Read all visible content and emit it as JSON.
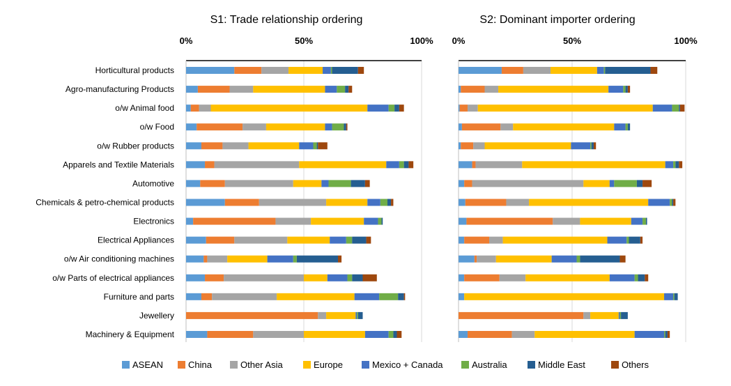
{
  "chart_data": {
    "type": "bar",
    "stacked": true,
    "orientation": "horizontal",
    "xlim": [
      0,
      100
    ],
    "tick_labels": [
      "0%",
      "50%",
      "100%"
    ],
    "categories": [
      "Horticultural products",
      "Agro-manufacturing Products",
      "o/w Animal food",
      "o/w Food",
      "o/w Rubber products",
      "Apparels and Textile Materials",
      "Automotive",
      "Chemicals & petro-chemical products",
      "Electronics",
      "Electrical Appliances",
      "o/w Air conditioning machines",
      "o/w Parts of electrical appliances",
      "Furniture and parts",
      "Jewellery",
      "Machinery & Equipment"
    ],
    "series_names": [
      "ASEAN",
      "China",
      "Other Asia",
      "Europe",
      "Mexico + Canada",
      "Australia",
      "Middle East",
      "Others"
    ],
    "colors": [
      "#5B9BD5",
      "#ED7D31",
      "#A5A5A5",
      "#FFC000",
      "#4472C4",
      "#70AD47",
      "#255E91",
      "#9E480E"
    ],
    "panels": [
      {
        "title": "S1: Trade relationship ordering",
        "values": [
          [
            20.5,
            11.5,
            11.5,
            14.5,
            3.5,
            0.5,
            11,
            2.5
          ],
          [
            5,
            13.5,
            10,
            30.5,
            5,
            3.5,
            1.5,
            1.5
          ],
          [
            2,
            3.5,
            5,
            66.5,
            9,
            2.5,
            2,
            2
          ],
          [
            4.5,
            19.5,
            10,
            25,
            3,
            5,
            1,
            0.5
          ],
          [
            6.5,
            9,
            11,
            21.5,
            6,
            1.5,
            0.5,
            4
          ],
          [
            8,
            4,
            36,
            37,
            5.5,
            2,
            2,
            2
          ],
          [
            6,
            10.5,
            29,
            12,
            3,
            9.5,
            6,
            2
          ],
          [
            16.5,
            14.5,
            28.5,
            17.5,
            5.5,
            3,
            1.5,
            1
          ],
          [
            3,
            35,
            15,
            22.5,
            6,
            1.5,
            0.5,
            0
          ],
          [
            8.5,
            12,
            22.5,
            18,
            7,
            2.5,
            6,
            2
          ],
          [
            7.5,
            1.5,
            8.5,
            17,
            11,
            1.5,
            17.5,
            1.5
          ],
          [
            8,
            8,
            34,
            10,
            8.5,
            2,
            4.5,
            6
          ],
          [
            6.5,
            4.5,
            27.5,
            33,
            10.5,
            8,
            2.5,
            0.5
          ],
          [
            0,
            56,
            3.5,
            12.5,
            0.5,
            0.5,
            2,
            0
          ],
          [
            9,
            19.5,
            21.5,
            26,
            10,
            2,
            1.5,
            2
          ]
        ]
      },
      {
        "title": "S2: Dominant importer ordering",
        "values": [
          [
            19,
            9.5,
            12,
            20.5,
            3,
            0.5,
            20,
            3
          ],
          [
            1,
            10.5,
            6,
            48.5,
            6.5,
            1,
            1,
            1
          ],
          [
            0.5,
            3.5,
            4.5,
            77,
            8.5,
            3,
            0.5,
            2
          ],
          [
            1.5,
            17,
            5.5,
            44.5,
            5,
            1,
            1,
            0
          ],
          [
            1,
            5.5,
            5,
            38,
            8.5,
            0.5,
            1,
            1
          ],
          [
            6,
            1.5,
            20.5,
            63,
            3.5,
            1,
            1.5,
            1.5
          ],
          [
            2.5,
            3.5,
            49,
            11.5,
            2,
            10,
            2.5,
            4
          ],
          [
            3,
            18,
            10,
            52.5,
            9.5,
            1,
            0.5,
            1
          ],
          [
            3.5,
            38,
            12,
            22.5,
            5,
            1.5,
            0.5,
            0
          ],
          [
            2.5,
            11,
            6,
            46,
            8.5,
            1,
            5,
            1
          ],
          [
            7,
            1,
            8.5,
            24.5,
            11,
            1.5,
            17.5,
            2.5
          ],
          [
            2.5,
            15.5,
            11.5,
            37,
            11,
            1.5,
            3,
            1.5
          ],
          [
            2.5,
            0,
            0,
            88,
            4,
            0.5,
            1.5,
            0
          ],
          [
            0,
            55,
            3,
            12.5,
            0.5,
            0.5,
            3,
            0
          ],
          [
            4,
            19.5,
            10,
            44,
            13,
            0.5,
            1,
            1
          ]
        ]
      }
    ]
  }
}
